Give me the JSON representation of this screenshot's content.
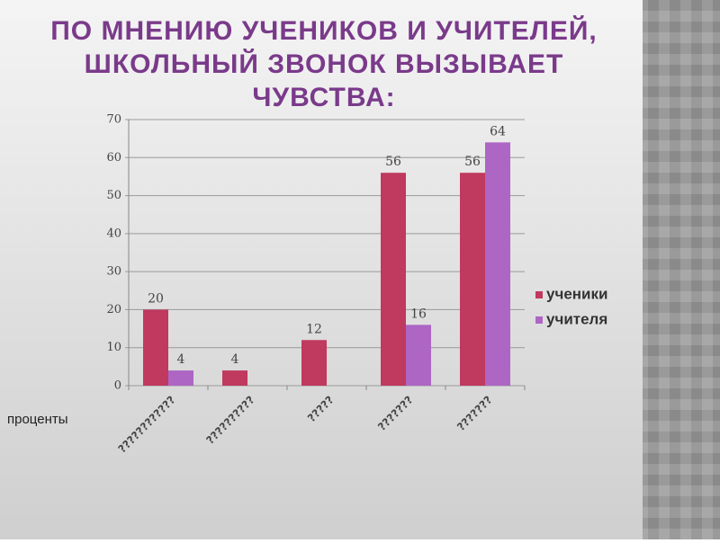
{
  "chart_data": {
    "type": "bar",
    "title": [
      "ПО МНЕНИЮ УЧЕНИКОВ И УЧИТЕЛЕЙ,",
      "ШКОЛЬНЫЙ ЗВОНОК ВЫЗЫВАЕТ",
      "ЧУВСТВА:"
    ],
    "y_label": "проценты",
    "categories": [
      "????????????",
      "??????????",
      "?????",
      "???????",
      "???????"
    ],
    "series": [
      {
        "name": "ученики",
        "color": "#c0395f",
        "values": [
          20,
          4,
          12,
          56,
          56
        ]
      },
      {
        "name": "учителя",
        "color": "#ad66c4",
        "values": [
          4,
          null,
          null,
          16,
          64
        ]
      }
    ],
    "ylim": [
      0,
      70
    ],
    "yticks": [
      0,
      10,
      20,
      30,
      40,
      50,
      60,
      70
    ],
    "grid": true,
    "legend": "right"
  }
}
